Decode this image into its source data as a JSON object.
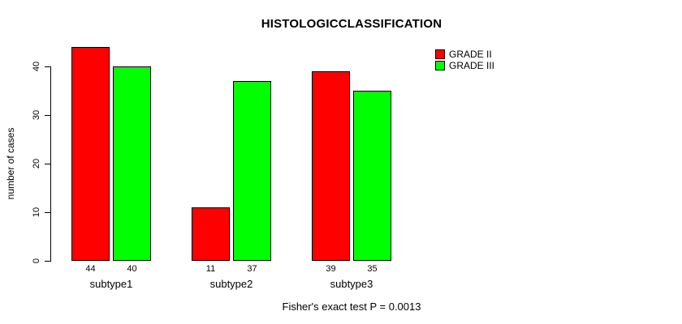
{
  "title": "HISTOLOGICCLASSIFICATION",
  "ylabel": "number of cases",
  "footer": "Fisher's exact test P = 0.0013",
  "legend": [
    {
      "label": "GRADE II",
      "color": "#ff0000"
    },
    {
      "label": "GRADE III",
      "color": "#00ff00"
    }
  ],
  "chart_data": {
    "type": "bar",
    "title": "HISTOLOGICCLASSIFICATION",
    "xlabel": "",
    "ylabel": "number of cases",
    "categories": [
      "subtype1",
      "subtype2",
      "subtype3"
    ],
    "series": [
      {
        "name": "GRADE II",
        "color": "#ff0000",
        "values": [
          44,
          11,
          39
        ]
      },
      {
        "name": "GRADE III",
        "color": "#00ff00",
        "values": [
          40,
          37,
          35
        ]
      }
    ],
    "bar_value_labels": [
      [
        44,
        40
      ],
      [
        11,
        37
      ],
      [
        39,
        35
      ]
    ],
    "ylim": [
      0,
      40
    ],
    "yticks": [
      0,
      10,
      20,
      30,
      40
    ],
    "grid": false,
    "legend_position": "top-right",
    "annotation": "Fisher's exact test P = 0.0013"
  }
}
